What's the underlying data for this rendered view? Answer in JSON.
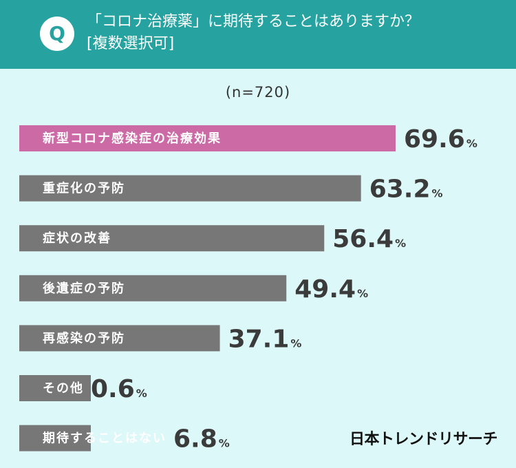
{
  "header": {
    "badge": "Q",
    "question_line1": "「コロナ治療薬」に期待することはありますか？",
    "question_line2": "[複数選択可]"
  },
  "sample_size": "(n=720)",
  "logo_text": "日本トレンドリサーチ",
  "colors": {
    "header_bg": "#26a2a0",
    "page_bg": "#dcf8f8",
    "highlight_bar": "#cc6aa6",
    "bar": "#777777"
  },
  "chart_data": {
    "type": "bar",
    "orientation": "horizontal",
    "unit": "%",
    "categories": [
      "新型コロナ感染症の治療効果",
      "重症化の予防",
      "症状の改善",
      "後遺症の予防",
      "再感染の予防",
      "その他",
      "期待することはない"
    ],
    "values": [
      69.6,
      63.2,
      56.4,
      49.4,
      37.1,
      0.6,
      6.8
    ],
    "value_labels": [
      "69.6",
      "63.2",
      "56.4",
      "49.4",
      "37.1",
      "0.6",
      "6.8"
    ],
    "highlight_index": 0,
    "xlim": [
      0,
      100
    ]
  }
}
